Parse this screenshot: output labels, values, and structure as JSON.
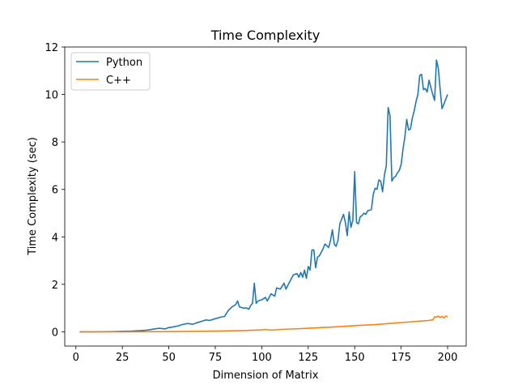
{
  "chart_data": {
    "type": "line",
    "title": "Time Complexity",
    "xlabel": "Dimension of Matrix",
    "ylabel": "Time Complexity (sec)",
    "xlim": [
      -6,
      210
    ],
    "ylim": [
      -0.6,
      12
    ],
    "xticks": [
      0,
      25,
      50,
      75,
      100,
      125,
      150,
      175,
      200
    ],
    "yticks": [
      0,
      2,
      4,
      6,
      8,
      10,
      12
    ],
    "legend_position": "upper-left",
    "series": [
      {
        "name": "Python",
        "color": "#1f77b4",
        "points": [
          [
            2,
            0.0
          ],
          [
            10,
            0.0
          ],
          [
            20,
            0.01
          ],
          [
            25,
            0.02
          ],
          [
            30,
            0.03
          ],
          [
            35,
            0.05
          ],
          [
            38,
            0.07
          ],
          [
            40,
            0.09
          ],
          [
            42,
            0.12
          ],
          [
            45,
            0.15
          ],
          [
            48,
            0.12
          ],
          [
            50,
            0.18
          ],
          [
            52,
            0.2
          ],
          [
            55,
            0.25
          ],
          [
            57,
            0.3
          ],
          [
            60,
            0.35
          ],
          [
            63,
            0.32
          ],
          [
            65,
            0.38
          ],
          [
            68,
            0.45
          ],
          [
            70,
            0.5
          ],
          [
            72,
            0.48
          ],
          [
            75,
            0.55
          ],
          [
            78,
            0.62
          ],
          [
            80,
            0.65
          ],
          [
            82,
            0.9
          ],
          [
            84,
            1.05
          ],
          [
            86,
            1.15
          ],
          [
            87,
            1.3
          ],
          [
            88,
            1.05
          ],
          [
            90,
            1.0
          ],
          [
            92,
            1.0
          ],
          [
            93,
            0.95
          ],
          [
            94,
            1.1
          ],
          [
            95,
            1.2
          ],
          [
            96,
            2.05
          ],
          [
            97,
            1.2
          ],
          [
            98,
            1.3
          ],
          [
            100,
            1.35
          ],
          [
            102,
            1.45
          ],
          [
            103,
            1.3
          ],
          [
            105,
            1.6
          ],
          [
            107,
            1.5
          ],
          [
            108,
            1.85
          ],
          [
            110,
            1.8
          ],
          [
            112,
            2.05
          ],
          [
            113,
            1.8
          ],
          [
            115,
            2.1
          ],
          [
            117,
            2.4
          ],
          [
            119,
            2.45
          ],
          [
            120,
            2.3
          ],
          [
            121,
            2.5
          ],
          [
            122,
            2.3
          ],
          [
            123,
            2.6
          ],
          [
            124,
            2.25
          ],
          [
            125,
            2.75
          ],
          [
            126,
            2.6
          ],
          [
            127,
            3.45
          ],
          [
            128,
            3.45
          ],
          [
            129,
            2.7
          ],
          [
            130,
            3.15
          ],
          [
            131,
            3.2
          ],
          [
            133,
            3.5
          ],
          [
            134,
            3.7
          ],
          [
            136,
            3.55
          ],
          [
            137,
            3.85
          ],
          [
            138,
            4.3
          ],
          [
            139,
            3.7
          ],
          [
            140,
            3.6
          ],
          [
            141,
            3.85
          ],
          [
            142,
            4.55
          ],
          [
            144,
            4.95
          ],
          [
            145,
            4.6
          ],
          [
            146,
            4.05
          ],
          [
            147,
            5.05
          ],
          [
            148,
            4.4
          ],
          [
            149,
            4.7
          ],
          [
            150,
            6.75
          ],
          [
            151,
            4.6
          ],
          [
            152,
            4.55
          ],
          [
            153,
            4.85
          ],
          [
            154,
            4.9
          ],
          [
            155,
            5.0
          ],
          [
            156,
            4.95
          ],
          [
            157,
            5.1
          ],
          [
            159,
            5.15
          ],
          [
            160,
            5.8
          ],
          [
            161,
            6.05
          ],
          [
            162,
            6.0
          ],
          [
            163,
            6.4
          ],
          [
            164,
            6.35
          ],
          [
            165,
            5.9
          ],
          [
            166,
            6.6
          ],
          [
            167,
            7.0
          ],
          [
            168,
            9.45
          ],
          [
            169,
            9.1
          ],
          [
            170,
            6.35
          ],
          [
            171,
            6.5
          ],
          [
            172,
            6.55
          ],
          [
            173,
            6.7
          ],
          [
            174,
            6.8
          ],
          [
            175,
            7.05
          ],
          [
            176,
            7.7
          ],
          [
            177,
            8.2
          ],
          [
            178,
            8.95
          ],
          [
            179,
            8.5
          ],
          [
            180,
            8.55
          ],
          [
            181,
            9.0
          ],
          [
            182,
            9.3
          ],
          [
            183,
            9.7
          ],
          [
            184,
            10.0
          ],
          [
            185,
            10.8
          ],
          [
            186,
            10.85
          ],
          [
            187,
            10.2
          ],
          [
            188,
            10.25
          ],
          [
            189,
            10.1
          ],
          [
            190,
            10.6
          ],
          [
            191,
            10.3
          ],
          [
            192,
            10.0
          ],
          [
            193,
            9.75
          ],
          [
            194,
            11.45
          ],
          [
            195,
            11.1
          ],
          [
            196,
            10.2
          ],
          [
            197,
            9.4
          ],
          [
            198,
            9.6
          ],
          [
            199,
            9.8
          ],
          [
            200,
            10.0
          ]
        ]
      },
      {
        "name": "C++",
        "color": "#ff7f0e",
        "points": [
          [
            2,
            0.0
          ],
          [
            25,
            0.0
          ],
          [
            50,
            0.01
          ],
          [
            75,
            0.03
          ],
          [
            90,
            0.05
          ],
          [
            100,
            0.08
          ],
          [
            102,
            0.1
          ],
          [
            105,
            0.07
          ],
          [
            110,
            0.1
          ],
          [
            120,
            0.13
          ],
          [
            130,
            0.17
          ],
          [
            140,
            0.21
          ],
          [
            150,
            0.26
          ],
          [
            160,
            0.3
          ],
          [
            170,
            0.36
          ],
          [
            180,
            0.42
          ],
          [
            190,
            0.48
          ],
          [
            192,
            0.5
          ],
          [
            193,
            0.63
          ],
          [
            194,
            0.62
          ],
          [
            195,
            0.66
          ],
          [
            196,
            0.6
          ],
          [
            197,
            0.65
          ],
          [
            198,
            0.58
          ],
          [
            199,
            0.66
          ],
          [
            200,
            0.64
          ]
        ]
      }
    ]
  }
}
